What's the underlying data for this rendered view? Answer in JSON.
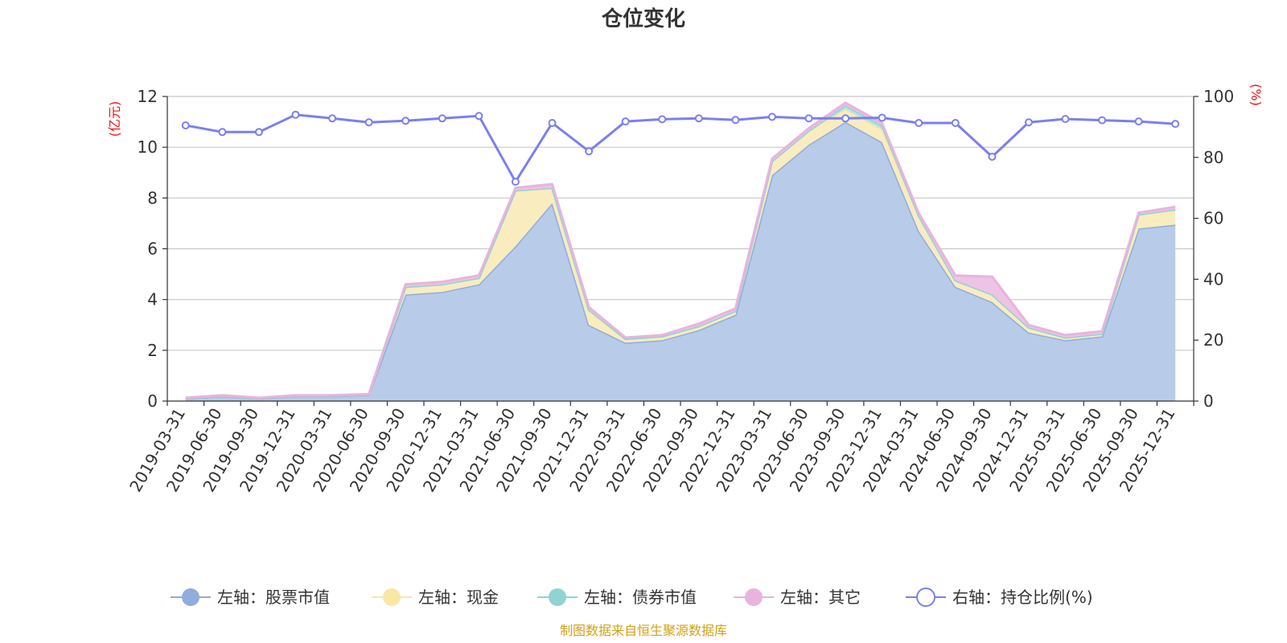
{
  "chart_data": {
    "type": "area",
    "title": "仓位变化",
    "source": "制图数据来自恒生聚源数据库",
    "left_axis": {
      "unit": "(亿元)",
      "min": 0,
      "max": 12,
      "ticks": [
        0,
        2,
        4,
        6,
        8,
        10,
        12
      ]
    },
    "right_axis": {
      "unit": "(%)",
      "min": 0,
      "max": 100,
      "ticks": [
        0,
        20,
        40,
        60,
        80,
        100
      ]
    },
    "grid": true,
    "legend_position": "bottom",
    "categories": [
      "2019-03-31",
      "2019-06-30",
      "2019-09-30",
      "2019-12-31",
      "2020-03-31",
      "2020-06-30",
      "2020-09-30",
      "2020-12-31",
      "2021-03-31",
      "2021-06-30",
      "2021-09-30",
      "2021-12-31",
      "2022-03-31",
      "2022-06-30",
      "2022-09-30",
      "2022-12-31",
      "2023-03-31",
      "2023-06-30",
      "2023-09-30",
      "2023-12-31",
      "2024-03-31",
      "2024-06-30",
      "2024-09-30",
      "2024-12-31",
      "2025-03-31",
      "2025-06-30",
      "2025-09-30",
      "2025-12-31"
    ],
    "series": [
      {
        "name": "左轴：股票市值",
        "axis": "left",
        "kind": "stacked-area",
        "color": "#91acdd",
        "fill": "#b8cbe9",
        "values": [
          0.1,
          0.2,
          0.1,
          0.2,
          0.2,
          0.25,
          4.2,
          4.3,
          4.6,
          6.1,
          7.8,
          3.0,
          2.3,
          2.4,
          2.8,
          3.4,
          8.9,
          10.1,
          11.0,
          10.2,
          6.7,
          4.5,
          3.9,
          2.7,
          2.4,
          2.55,
          6.8,
          6.95
        ]
      },
      {
        "name": "左轴：现金",
        "axis": "left",
        "kind": "stacked-area",
        "color": "#f9e7a6",
        "fill": "#f9ecbf",
        "values": [
          0.02,
          0.02,
          0.02,
          0.02,
          0.02,
          0.02,
          0.3,
          0.3,
          0.25,
          2.2,
          0.6,
          0.6,
          0.15,
          0.15,
          0.15,
          0.15,
          0.55,
          0.55,
          0.5,
          0.5,
          0.6,
          0.25,
          0.3,
          0.2,
          0.1,
          0.1,
          0.55,
          0.6
        ]
      },
      {
        "name": "左轴：债券市值",
        "axis": "left",
        "kind": "stacked-area",
        "color": "#8fd3d3",
        "fill": "#b5e3e3",
        "values": [
          0,
          0,
          0,
          0,
          0,
          0,
          0,
          0,
          0,
          0,
          0,
          0,
          0,
          0,
          0,
          0,
          0,
          0,
          0.15,
          0.15,
          0,
          0,
          0,
          0,
          0,
          0,
          0,
          0
        ]
      },
      {
        "name": "左轴：其它",
        "axis": "left",
        "kind": "stacked-area",
        "color": "#e8b4dd",
        "fill": "#edc3e6",
        "values": [
          0.01,
          0.01,
          0.01,
          0.01,
          0.01,
          0.01,
          0.1,
          0.1,
          0.1,
          0.1,
          0.15,
          0.1,
          0.05,
          0.05,
          0.1,
          0.1,
          0.1,
          0.1,
          0.1,
          0.1,
          0.1,
          0.2,
          0.7,
          0.1,
          0.1,
          0.1,
          0.07,
          0.1
        ]
      },
      {
        "name": "右轴：持仓比例(%)",
        "axis": "right",
        "kind": "line",
        "color": "#7b7ff0",
        "values": [
          90.5,
          88.3,
          88.3,
          94.0,
          92.8,
          91.5,
          92.0,
          92.8,
          93.6,
          72.0,
          91.3,
          82.0,
          91.8,
          92.5,
          92.8,
          92.3,
          93.3,
          92.8,
          92.8,
          93.0,
          91.3,
          91.3,
          80.2,
          91.5,
          92.6,
          92.2,
          91.8,
          91.0
        ]
      }
    ]
  }
}
